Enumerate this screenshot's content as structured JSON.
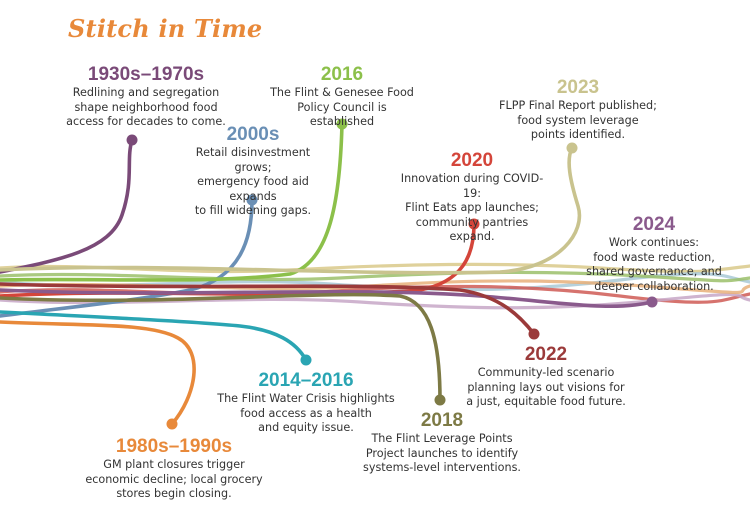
{
  "title": "Stitch in Time",
  "events": [
    {
      "year": "1930s–1970s",
      "description": [
        "Redlining and segregation",
        "shape neighborhood food",
        "access for decades to come."
      ],
      "color": "#7a4a78"
    },
    {
      "year": "2000s",
      "description": [
        "Retail disinvestment grows;",
        "emergency food aid expands",
        "to fill widening gaps."
      ],
      "color": "#6a8fb5"
    },
    {
      "year": "2016",
      "description": [
        "The Flint & Genesee Food",
        "Policy Council is established"
      ],
      "color": "#8cc04a"
    },
    {
      "year": "2020",
      "description": [
        "Innovation during COVID-19:",
        "Flint Eats app launches;",
        "community pantries expand."
      ],
      "color": "#d4453a"
    },
    {
      "year": "2023",
      "description": [
        "FLPP Final Report published;",
        "food system leverage",
        "points identified."
      ],
      "color": "#c9c38e"
    },
    {
      "year": "2024",
      "description": [
        "Work continues:",
        "food waste reduction,",
        "shared governance, and",
        "deeper collaboration."
      ],
      "color": "#8a5a8c"
    },
    {
      "year": "2022",
      "description": [
        "Community-led scenario",
        "planning lays out visions for",
        "a just, equitable food future."
      ],
      "color": "#9b3a3a"
    },
    {
      "year": "2018",
      "description": [
        "The Flint Leverage Points",
        "Project launches to identify",
        "systems-level interventions."
      ],
      "color": "#7d7a45"
    },
    {
      "year": "2014–2016",
      "description": [
        "The Flint Water Crisis highlights",
        "food access as a health",
        "and equity issue."
      ],
      "color": "#2aa5b3"
    },
    {
      "year": "1980s–1990s",
      "description": [
        "GM plant closures trigger",
        "economic decline; local grocery",
        "stores begin closing."
      ],
      "color": "#e8893a"
    }
  ]
}
